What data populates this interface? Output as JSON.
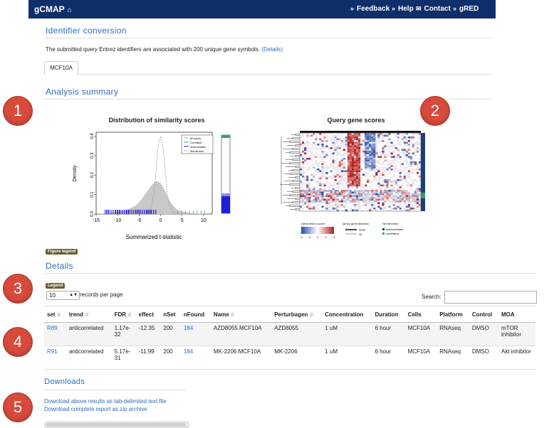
{
  "header": {
    "brand": "gCMAP",
    "nav": [
      "Feedback",
      "Help",
      "Contact",
      "gRED"
    ]
  },
  "identifier_conversion": {
    "title": "Identifier conversion",
    "message": "The submitted query Entrez identifiers are associated with 200 unique gene symbols.",
    "details_link": "(Details)",
    "tab": "MCF10A"
  },
  "analysis_summary": {
    "title": "Analysis summary",
    "figure_legend": "Figure legend"
  },
  "chart_data": [
    {
      "type": "area",
      "title": "Distribution of similarity scores",
      "xlabel": "Summarized t-statistic",
      "ylabel": "Density",
      "xlim": [
        -15,
        12
      ],
      "ylim": [
        0,
        0.42
      ],
      "x_ticks": [
        "-15",
        "-10",
        "-5",
        "0",
        "5",
        "10"
      ],
      "y_ticks": [
        "0.0",
        "0.1",
        "0.2",
        "0.3",
        "0.4"
      ],
      "legend": [
        "All scores",
        "Correlated",
        "Anticorrelated",
        "Normal distr."
      ],
      "legend_position": "top-right",
      "series": [
        {
          "name": "All scores",
          "x": [
            -15,
            -12,
            -10,
            -8,
            -6,
            -5,
            -4,
            -3,
            -2,
            -1,
            0,
            1,
            2,
            3,
            4,
            6,
            8,
            10,
            12
          ],
          "y": [
            0.0,
            0.005,
            0.01,
            0.02,
            0.04,
            0.06,
            0.09,
            0.12,
            0.15,
            0.17,
            0.16,
            0.12,
            0.07,
            0.04,
            0.02,
            0.008,
            0.003,
            0.001,
            0.0
          ]
        },
        {
          "name": "Normal distr.",
          "x": [
            -6,
            -5,
            -4,
            -3,
            -2,
            -1.5,
            -1,
            -0.5,
            0,
            0.5,
            1,
            1.5,
            2,
            3,
            4,
            5,
            6
          ],
          "y": [
            0.0,
            0.0,
            0.001,
            0.005,
            0.05,
            0.12,
            0.24,
            0.36,
            0.4,
            0.36,
            0.24,
            0.12,
            0.05,
            0.005,
            0.001,
            0.0,
            0.0
          ]
        }
      ],
      "colors": {
        "all": "#c8c8c8",
        "correlated": "#3aa07a",
        "anticorrelated": "#1f1fd6",
        "normal": "#999999"
      }
    },
    {
      "type": "heatmap",
      "title": "Query gene scores",
      "legend_titles": [
        "Gene-level z-score",
        "Query gene direction",
        "Set direction"
      ],
      "zscore_ticks": [
        "-4",
        "-2",
        "0",
        "2",
        "4"
      ],
      "query_direction": [
        "down",
        "up"
      ],
      "set_direction": [
        "anticorrelated",
        "correlated"
      ],
      "colors": {
        "low": "#2a4fa8",
        "mid": "#ffffff",
        "high": "#b81e1e",
        "anticorrelated": "#1d3d7a",
        "correlated": "#2f9e6e"
      }
    }
  ],
  "details": {
    "title": "Details",
    "legend_tag": "Legend",
    "page_size": "10",
    "records_label": "records per page",
    "search_label": "Search:",
    "columns": [
      "set",
      "trend",
      "FDR",
      "effect",
      "nSet",
      "nFound",
      "Name",
      "Perturbagen",
      "Concentration",
      "Duration",
      "Cells",
      "Platform",
      "Control",
      "MOA"
    ],
    "rows": [
      [
        "R89",
        "anticorrelated",
        "1.17e-32",
        "-12.35",
        "200",
        "184",
        "AZD8055.MCF10A",
        "AZD8055",
        "1 uM",
        "6 hour",
        "MCF10A",
        "RNAseq",
        "DMSO",
        "mTOR inhibitor"
      ],
      [
        "R91",
        "anticorrelated",
        "5.17e-31",
        "-11.99",
        "200",
        "184",
        "MK-2206.MCF10A",
        "MK-2206",
        "1 uM",
        "6 hour",
        "MCF10A",
        "RNAseq",
        "DMSO",
        "Akt inhibitor"
      ]
    ]
  },
  "downloads": {
    "title": "Downloads",
    "links": [
      "Download above results as tab-delimited text file",
      "Download complete report as zip archive"
    ]
  },
  "markers": [
    "1",
    "2",
    "3",
    "4",
    "5"
  ]
}
